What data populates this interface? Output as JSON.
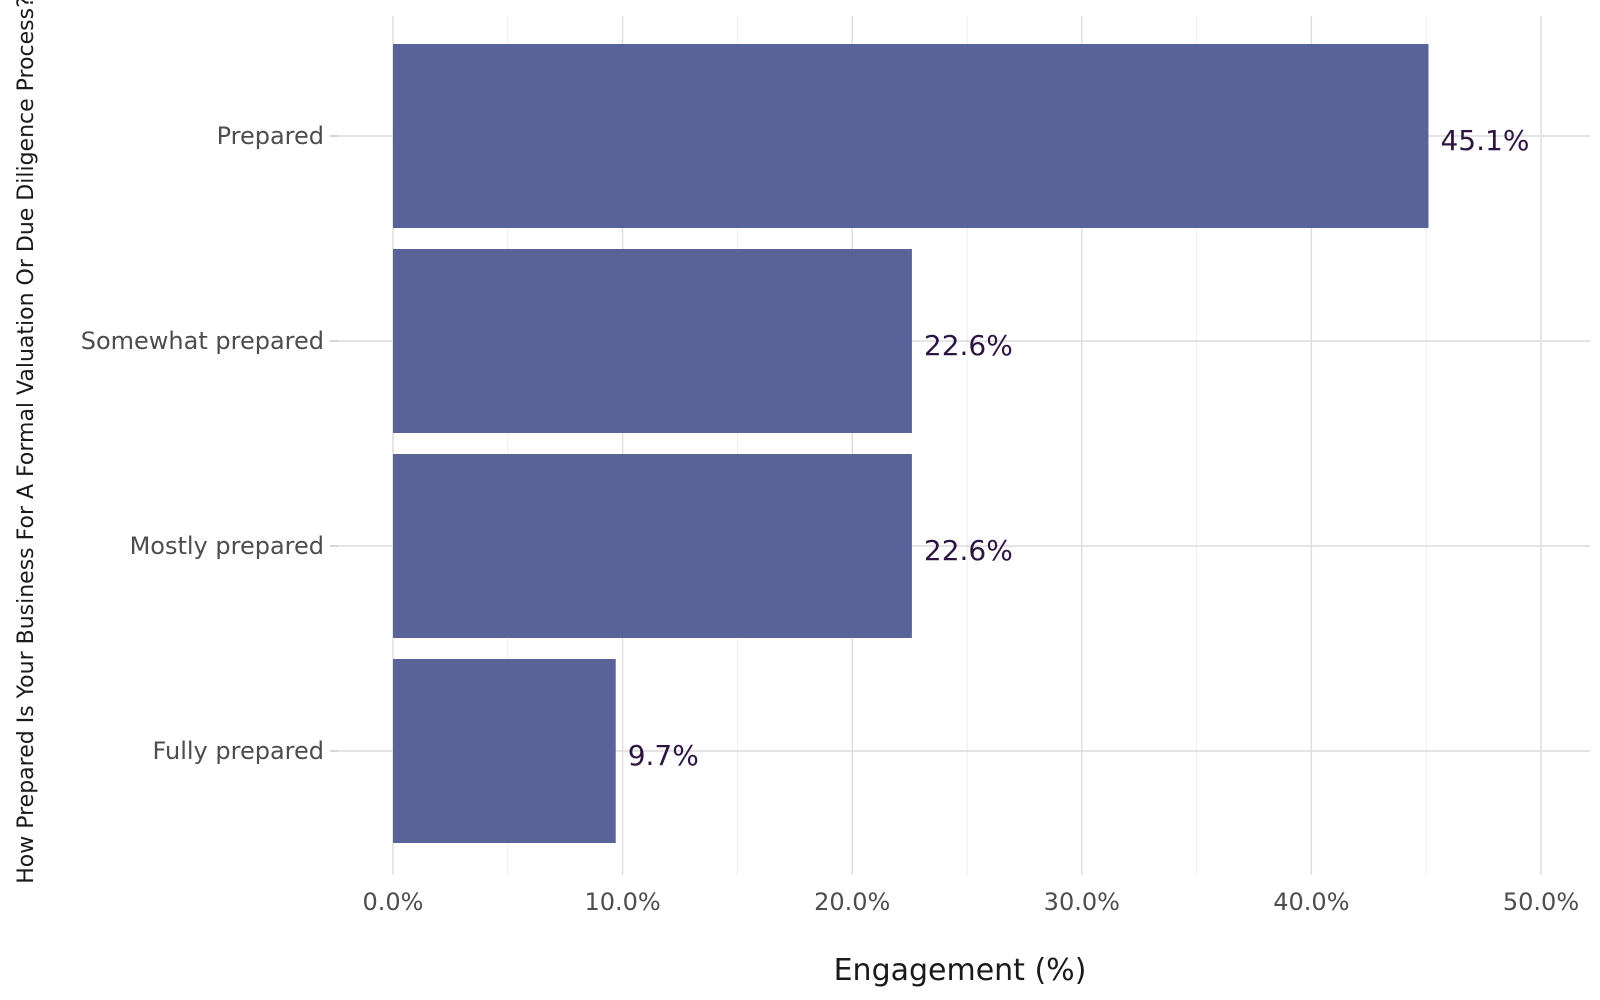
{
  "chart_data": {
    "type": "bar",
    "orientation": "horizontal",
    "categories": [
      "Prepared",
      "Somewhat prepared",
      "Mostly prepared",
      "Fully prepared"
    ],
    "values": [
      45.1,
      22.6,
      22.6,
      9.7
    ],
    "data_labels": [
      "45.1%",
      "22.6%",
      "22.6%",
      "9.7%"
    ],
    "title": "",
    "xlabel": "Engagement (%)",
    "ylabel": "How Prepared Is Your Business For A Formal Valuation Or Due Diligence Process?",
    "xlim": [
      0,
      50
    ],
    "x_ticks": [
      0,
      10,
      20,
      30,
      40,
      50
    ],
    "x_tick_labels": [
      "0.0%",
      "10.0%",
      "20.0%",
      "30.0%",
      "40.0%",
      "50.0%"
    ],
    "grid": true,
    "legend": "none"
  },
  "colors": {
    "bar": "#5a6399",
    "data_label": "#2e1442",
    "background": "#ffffff"
  }
}
